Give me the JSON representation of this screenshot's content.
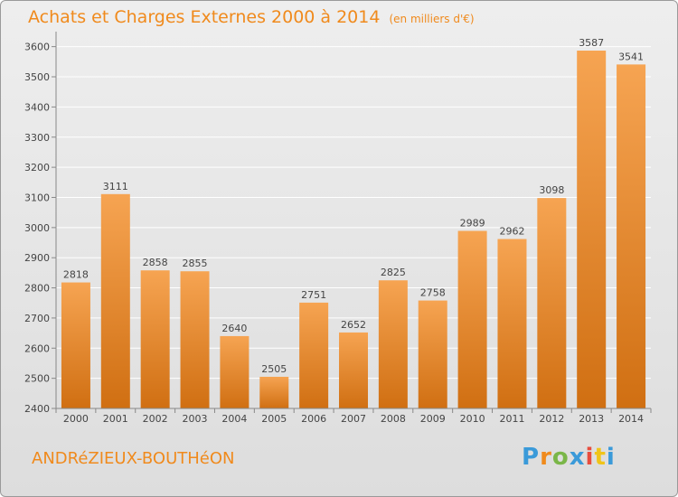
{
  "header": {
    "title": "Achats et Charges Externes 2000 à 2014",
    "unit": "(en milliers d'€)"
  },
  "footer": {
    "city": "ANDRéZIEUX-BOUTHéON",
    "logo": {
      "letters": [
        "P",
        "r",
        "o",
        "x",
        "i",
        "t",
        "i"
      ],
      "colors": [
        "#3a9ad9",
        "#f08a1c",
        "#7ab648",
        "#3a9ad9",
        "#e84d3d",
        "#f0c419",
        "#3a9ad9"
      ]
    }
  },
  "colors": {
    "accent": "#f08a1c",
    "bar_top": "#f6a452",
    "bar_bottom": "#d06f12",
    "grid": "#ffffff",
    "axis_text": "#444444"
  },
  "chart_data": {
    "type": "bar",
    "categories": [
      "2000",
      "2001",
      "2002",
      "2003",
      "2004",
      "2005",
      "2006",
      "2007",
      "2008",
      "2009",
      "2010",
      "2011",
      "2012",
      "2013",
      "2014"
    ],
    "values": [
      2818,
      3111,
      2858,
      2855,
      2640,
      2505,
      2751,
      2652,
      2825,
      2758,
      2989,
      2962,
      3098,
      3587,
      3541
    ],
    "data_labels": [
      "2818",
      "3111",
      "2858",
      "2855",
      "2640",
      "2505",
      "2751",
      "2652",
      "2825",
      "2758",
      "2989",
      "2962",
      "3098",
      "3587",
      "3541"
    ],
    "yticks": [
      2400,
      2500,
      2600,
      2700,
      2800,
      2900,
      3000,
      3100,
      3200,
      3300,
      3400,
      3500,
      3600
    ],
    "ylim": [
      2400,
      3650
    ],
    "grid": true,
    "title": "Achats et Charges Externes 2000 à 2014",
    "xlabel": "",
    "ylabel": ""
  }
}
